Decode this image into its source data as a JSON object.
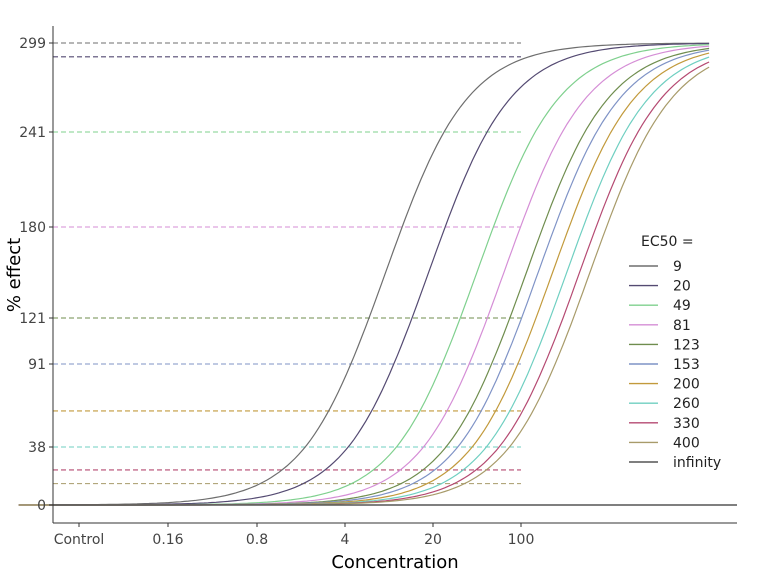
{
  "chart_data": {
    "type": "line",
    "title": "",
    "xlabel": "Concentration",
    "ylabel": "% effect",
    "x_scale": "log",
    "x_ticks": [
      "Control",
      "0.16",
      "0.8",
      "4",
      "20",
      "100"
    ],
    "y_ticks": [
      "0",
      "38",
      "91",
      "121",
      "180",
      "241",
      "299"
    ],
    "ylim": [
      0,
      299
    ],
    "grid": false,
    "legend_title": "EC50 =",
    "legend_position": "right",
    "max_effect": 299,
    "hill_slope": 1.3,
    "series": [
      {
        "name": "9",
        "ec50": 9,
        "color": "#6e6e6e"
      },
      {
        "name": "20",
        "ec50": 20,
        "color": "#544a72"
      },
      {
        "name": "49",
        "ec50": 49,
        "color": "#7fd08e"
      },
      {
        "name": "81",
        "ec50": 81,
        "color": "#d58ed6"
      },
      {
        "name": "123",
        "ec50": 123,
        "color": "#6f8d4e"
      },
      {
        "name": "153",
        "ec50": 153,
        "color": "#7f93c6"
      },
      {
        "name": "200",
        "ec50": 200,
        "color": "#c29a3c"
      },
      {
        "name": "260",
        "ec50": 260,
        "color": "#6fcfc1"
      },
      {
        "name": "330",
        "ec50": 330,
        "color": "#b54a72"
      },
      {
        "name": "400",
        "ec50": 400,
        "color": "#a89b6a"
      },
      {
        "name": "infinity",
        "ec50": null,
        "color": "#555555"
      }
    ],
    "reference_lines": [
      {
        "y": 299,
        "color": "#6e6e6e"
      },
      {
        "y": 290,
        "color": "#544a72"
      },
      {
        "y": 241,
        "color": "#7fd08e"
      },
      {
        "y": 180,
        "color": "#d58ed6"
      },
      {
        "y": 121,
        "color": "#6f8d4e"
      },
      {
        "y": 91,
        "color": "#7f93c6"
      },
      {
        "y": 61,
        "color": "#c29a3c"
      },
      {
        "y": 38,
        "color": "#6fcfc1"
      },
      {
        "y": 23,
        "color": "#b54a72"
      },
      {
        "y": 14,
        "color": "#a89b6a"
      }
    ]
  }
}
